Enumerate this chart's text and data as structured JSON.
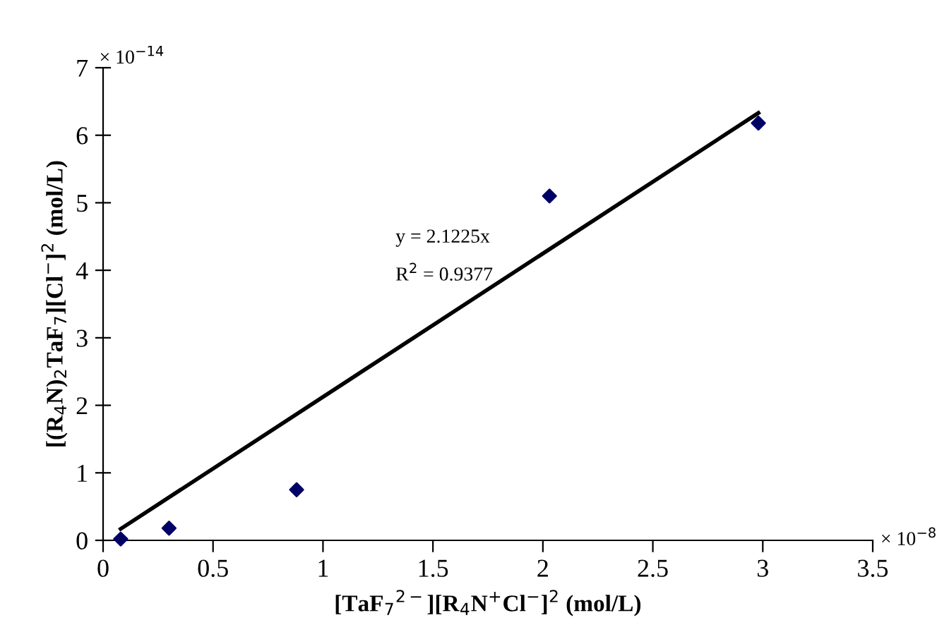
{
  "chart_data": {
    "type": "scatter",
    "xlabel": "[TaF$_{7}$$^{2−}$][R$_{4}$N$^{+}$Cl$^{−}$]$^{2}$ (mol/L)",
    "ylabel": "[(R$_{4}$N)$_{2}$TaF$_{7}$][Cl$^{−}$]$^{2}$ (mol/L)",
    "series": [
      {
        "color": "#000066",
        "marker": "diamond",
        "x": [
          0.08,
          0.3,
          0.88,
          2.03,
          2.98
        ],
        "values": [
          0.02,
          0.18,
          0.75,
          5.1,
          6.18
        ]
      },
      {
        "type": "line",
        "color": "#000000",
        "marker": "none",
        "line_style": "solid",
        "x": [
          0.08,
          2.98
        ],
        "values": [
          0.17,
          6.33
        ]
      }
    ],
    "xlim": [
      0,
      3.5
    ],
    "ylim": [
      0,
      7
    ],
    "xticks": [
      0,
      0.5,
      1,
      1.5,
      2,
      2.5,
      3,
      3.5
    ],
    "yticks": [
      0,
      1,
      2,
      3,
      4,
      5,
      6,
      7
    ],
    "grid": false,
    "legend": false,
    "annotations": [
      "y = 2.1225x",
      "R$^{2}$ = 0.9377",
      "× 10$^{−14}$",
      "× 10$^{−8}$"
    ]
  }
}
